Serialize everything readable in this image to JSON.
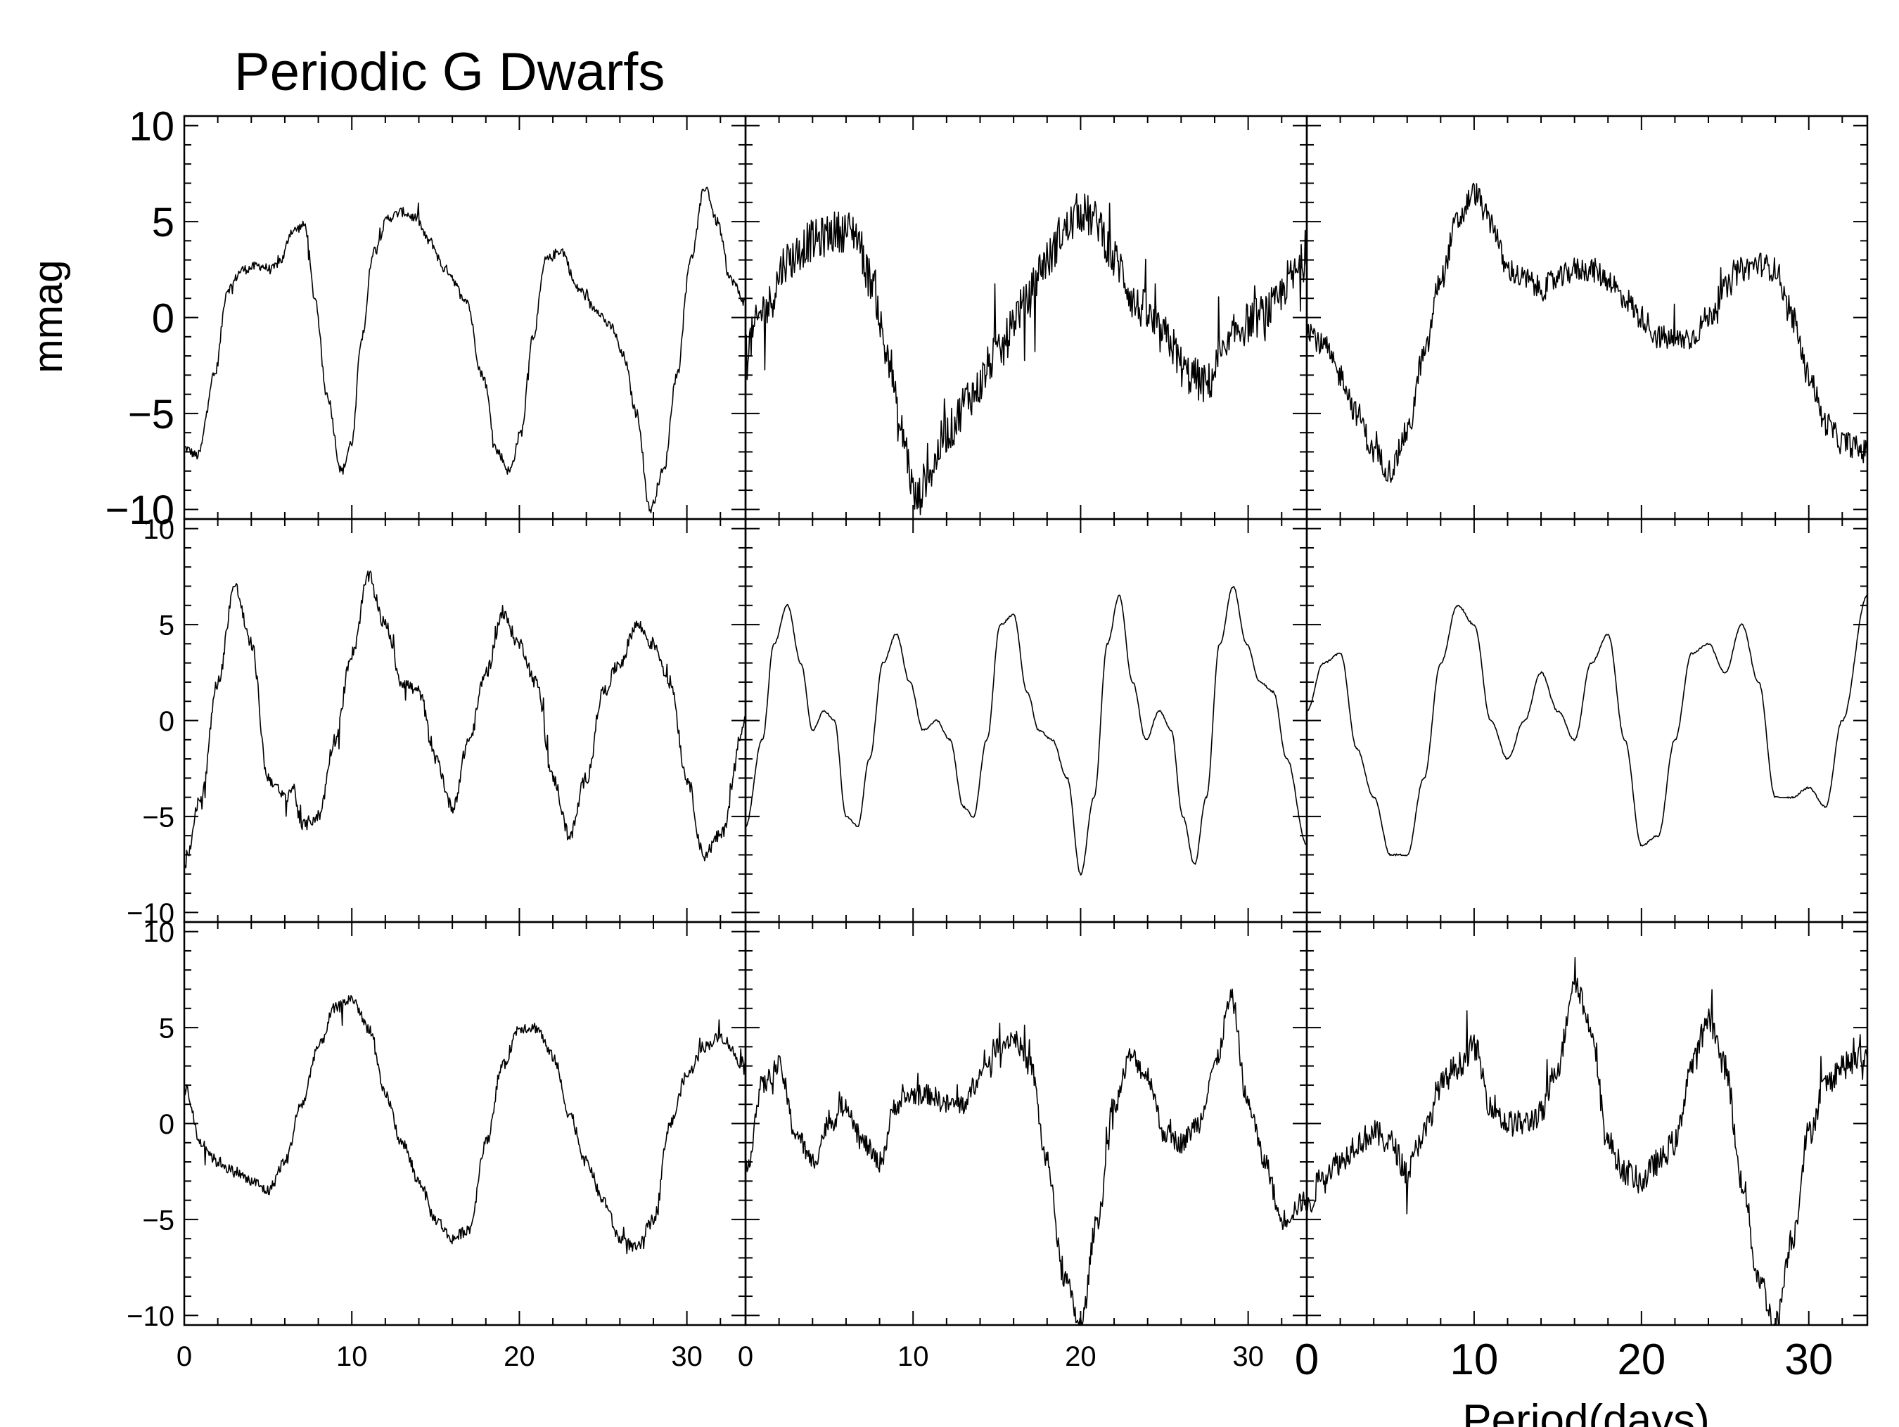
{
  "title": "Periodic G Dwarfs",
  "ylabel": "mmag",
  "xlabel": "Period(days)",
  "chart_data": {
    "type": "line",
    "title": "Periodic G Dwarfs",
    "xlabel": "Period(days)",
    "ylabel": "mmag",
    "xlim": [
      0,
      33.5
    ],
    "ylim": [
      -10.5,
      10.5
    ],
    "layout": "3x3 grid",
    "grid": false,
    "legend": "none",
    "x_ticks": [
      0,
      10,
      20,
      30
    ],
    "y_ticks": [
      -10,
      -5,
      0,
      5,
      10
    ],
    "panels": [
      {
        "row": 0,
        "col": 0,
        "noise": 0.25,
        "x": [
          0,
          0.8,
          1.8,
          2.6,
          3.5,
          4.5,
          5.2,
          5.8,
          6.4,
          7.2,
          7.8,
          8.5,
          9.4,
          10,
          10.6,
          11.3,
          12.2,
          13,
          13.8,
          14.6,
          15.6,
          16.8,
          17.8,
          18.7,
          19.4,
          20.1,
          20.8,
          21.6,
          22.5,
          23.5,
          24.5,
          25.5,
          26.2,
          27,
          27.8,
          28.6,
          29.4,
          30.2,
          31.1,
          31.8,
          32.6,
          33.5
        ],
        "y": [
          -6.8,
          -7.2,
          -3,
          1.5,
          2.5,
          2.7,
          2.5,
          3,
          4.5,
          4.8,
          1,
          -4,
          -8,
          -6.5,
          -1,
          3.5,
          5.2,
          5.5,
          5.2,
          4,
          2.5,
          1,
          -3,
          -7,
          -8,
          -6,
          -1,
          3,
          3.5,
          1.5,
          0.5,
          -0.5,
          -2,
          -5,
          -10,
          -8,
          -3,
          3,
          6.8,
          5,
          2,
          0.8
        ]
      },
      {
        "row": 0,
        "col": 1,
        "noise": 1.1,
        "x": [
          0,
          1.2,
          2.5,
          4,
          5.5,
          6.5,
          7.5,
          8.5,
          9.3,
          10.2,
          11,
          12,
          13.5,
          15,
          16.5,
          18,
          19,
          20,
          21,
          22,
          23.5,
          25,
          26.5,
          27.5,
          28.5,
          29.5,
          30.5,
          31.5,
          32.5,
          33.5
        ],
        "y": [
          -1.5,
          0.5,
          3,
          4,
          4.5,
          4.5,
          2,
          -2,
          -6,
          -9.5,
          -8,
          -6,
          -4,
          -2,
          0.5,
          3,
          4.5,
          5.5,
          5,
          3,
          0.5,
          -1,
          -3,
          -3.5,
          -2,
          -0.5,
          0,
          0.5,
          2,
          3
        ]
      },
      {
        "row": 0,
        "col": 2,
        "noise": 0.65,
        "x": [
          0,
          1,
          2,
          3,
          4,
          5,
          6,
          7,
          8,
          9,
          10,
          11,
          12,
          13,
          14,
          15,
          16,
          17,
          18,
          19,
          20,
          21,
          22,
          23,
          24,
          25,
          26,
          27,
          28,
          29,
          30,
          31,
          32,
          33.5
        ],
        "y": [
          -0.5,
          -1.5,
          -3,
          -5,
          -7,
          -8,
          -6,
          -2,
          2,
          5,
          6.5,
          5,
          2.5,
          2,
          1.5,
          2,
          2.5,
          2.5,
          2,
          1,
          0,
          -1,
          -1.2,
          -1,
          0,
          1.5,
          2.5,
          2.8,
          2.5,
          0,
          -3,
          -5.5,
          -6.5,
          -7
        ]
      },
      {
        "row": 1,
        "col": 0,
        "noise": 0.35,
        "x": [
          0,
          1,
          2,
          3,
          4,
          5,
          6,
          6.5,
          7,
          8,
          9,
          10,
          11,
          12,
          13,
          14,
          15,
          16,
          17,
          18,
          19,
          20,
          21,
          22,
          23,
          24,
          25,
          26,
          27,
          28,
          29,
          30,
          31,
          32,
          33.5
        ],
        "y": [
          -7.5,
          -4,
          2,
          7,
          4,
          -3,
          -4,
          -3.5,
          -5.5,
          -5,
          -1,
          3.5,
          7.5,
          5,
          2,
          1.5,
          -2,
          -4.5,
          -1,
          2.5,
          5.5,
          4,
          2,
          -3,
          -6,
          -3,
          1.5,
          3,
          5,
          4,
          2,
          -3,
          -7,
          -6,
          0
        ]
      },
      {
        "row": 1,
        "col": 1,
        "noise": 0.05,
        "x": [
          0,
          1,
          1.7,
          2.5,
          3.3,
          4,
          4.7,
          5.3,
          6,
          6.7,
          7.4,
          8.2,
          9,
          9.8,
          10.6,
          11.4,
          12.2,
          13,
          13.6,
          14.4,
          15.2,
          16,
          16.8,
          17.5,
          18.3,
          19.2,
          20,
          20.8,
          21.6,
          22.3,
          23.1,
          23.9,
          24.7,
          25.4,
          26.1,
          26.8,
          27.5,
          28.3,
          29.1,
          29.9,
          30.7,
          31.5,
          32.3,
          33.5
        ],
        "y": [
          -5.5,
          -1,
          4,
          6,
          3,
          -0.5,
          0.5,
          0,
          -5,
          -5.5,
          -2,
          3,
          4.5,
          2,
          -0.5,
          0,
          -1,
          -4.5,
          -5,
          -1,
          5,
          5.5,
          1.5,
          -0.5,
          -1,
          -3,
          -8,
          -4,
          4,
          6.5,
          2,
          -1,
          0.5,
          -0.5,
          -5,
          -7.5,
          -4,
          4,
          7,
          4,
          2,
          1.5,
          -2,
          -6.5
        ]
      },
      {
        "row": 1,
        "col": 2,
        "noise": 0.05,
        "x": [
          0,
          1,
          2,
          3,
          4,
          5,
          6,
          7,
          8,
          9,
          10,
          11,
          12,
          13,
          14,
          15,
          16,
          17,
          18,
          19,
          20,
          21,
          22,
          23,
          24,
          25,
          26,
          27,
          28,
          29,
          30,
          31,
          32,
          33.5
        ],
        "y": [
          0.5,
          3,
          3.5,
          -1.5,
          -4,
          -7,
          -7,
          -3,
          3,
          6,
          5,
          0,
          -2,
          0,
          2.5,
          0.5,
          -1,
          3,
          4.5,
          -1,
          -6.5,
          -6,
          -1,
          3.5,
          4,
          2.5,
          5,
          2,
          -4,
          -4,
          -3.5,
          -4.5,
          0,
          6.5
        ]
      },
      {
        "row": 2,
        "col": 0,
        "noise": 0.3,
        "x": [
          0,
          1,
          2,
          3,
          4,
          5,
          6,
          7,
          8,
          9,
          10,
          11,
          12,
          13,
          14,
          15,
          16,
          17,
          18,
          19,
          20,
          21,
          22,
          23,
          24,
          25,
          26,
          27,
          28,
          29,
          30,
          31,
          32,
          33.5
        ],
        "y": [
          2,
          -1,
          -2,
          -2.5,
          -3,
          -3.5,
          -2,
          1,
          4,
          6,
          6.5,
          5,
          1.5,
          -1,
          -3,
          -5,
          -6,
          -5.5,
          -1,
          3,
          5,
          5,
          3.5,
          0.5,
          -2,
          -4,
          -6,
          -6.5,
          -5,
          0,
          2.5,
          4,
          4.5,
          3
        ]
      },
      {
        "row": 2,
        "col": 1,
        "noise": 0.55,
        "x": [
          0,
          1,
          2,
          3,
          4,
          5,
          6,
          7,
          8,
          9,
          10,
          11,
          12,
          13,
          14,
          15,
          16,
          17,
          18,
          19,
          20,
          21,
          22,
          23,
          24,
          25,
          26,
          27,
          28,
          29,
          30,
          31,
          32,
          33.5
        ],
        "y": [
          -2.5,
          2,
          3,
          -0.5,
          -2,
          0,
          1,
          -1,
          -2,
          1,
          1.5,
          1.5,
          1,
          1,
          2.5,
          4,
          4.5,
          3,
          -2,
          -8,
          -10.5,
          -5,
          1,
          3.5,
          2.5,
          -0.5,
          -1,
          0,
          3,
          6.5,
          1,
          -2,
          -5,
          -4
        ]
      },
      {
        "row": 2,
        "col": 2,
        "noise": 0.7,
        "x": [
          0,
          1,
          2,
          3,
          4,
          5,
          6,
          7,
          8,
          9,
          10,
          11,
          12,
          13,
          14,
          15,
          16,
          17,
          18,
          19,
          20,
          21,
          22,
          23,
          24,
          25,
          26,
          27,
          28,
          29,
          30,
          31,
          32,
          33.5
        ],
        "y": [
          -4.5,
          -2.5,
          -2,
          -1,
          -0.5,
          -1,
          -2.5,
          -0.5,
          2,
          3,
          4,
          1,
          0,
          0,
          0.5,
          3,
          7.5,
          5,
          -1,
          -2.5,
          -3,
          -2,
          -1,
          3,
          5.5,
          3,
          -3,
          -8,
          -10.5,
          -6,
          -0.5,
          2,
          3,
          3.5
        ]
      }
    ]
  }
}
